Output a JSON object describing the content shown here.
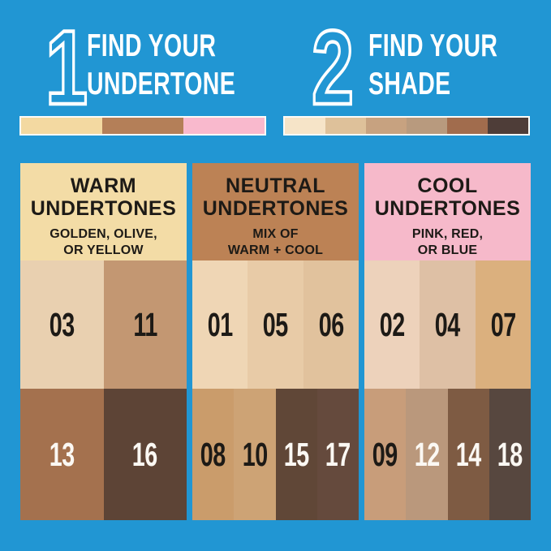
{
  "page": {
    "background": "#2196d3"
  },
  "steps": [
    {
      "number": "1",
      "title_line1": "FIND YOUR",
      "title_line2": "UNDERTONE",
      "swatches": [
        "#f3d9a1",
        "#b47f58",
        "#f9b9cd"
      ]
    },
    {
      "number": "2",
      "title_line1": "FIND YOUR",
      "title_line2": "SHADE",
      "swatches": [
        "#f6e4c8",
        "#dec19a",
        "#c7a280",
        "#b89a7e",
        "#a16c4d",
        "#4e3d38"
      ]
    }
  ],
  "columns": [
    {
      "title_line1": "WARM",
      "title_line2": "UNDERTONES",
      "subtitle_line1": "GOLDEN, OLIVE,",
      "subtitle_line2": "OR YELLOW",
      "header_bg": "#f3dca6",
      "light_row": [
        {
          "label": "03",
          "color": "#e9d0b0",
          "number_color": "#1d1a16"
        },
        {
          "label": "11",
          "color": "#c39772",
          "number_color": "#1d1a16"
        }
      ],
      "dark_row": [
        {
          "label": "13",
          "color": "#a4714e",
          "number_color": "#fbf8f3"
        },
        {
          "label": "16",
          "color": "#5d4436",
          "number_color": "#fbf8f3"
        }
      ]
    },
    {
      "title_line1": "NEUTRAL",
      "title_line2": "UNDERTONES",
      "subtitle_line1": "MIX OF",
      "subtitle_line2": "WARM + COOL",
      "header_bg": "#bc8255",
      "light_row": [
        {
          "label": "01",
          "color": "#efd6b5",
          "number_color": "#1d1a16"
        },
        {
          "label": "05",
          "color": "#e8cba7",
          "number_color": "#1d1a16"
        },
        {
          "label": "06",
          "color": "#e1c29d",
          "number_color": "#1d1a16"
        }
      ],
      "dark_row": [
        {
          "label": "08",
          "color": "#ca9c6b",
          "number_color": "#1d1a16"
        },
        {
          "label": "10",
          "color": "#cda375",
          "number_color": "#1d1a16"
        },
        {
          "label": "15",
          "color": "#604737",
          "number_color": "#fbf8f3"
        },
        {
          "label": "17",
          "color": "#654a3d",
          "number_color": "#fbf8f3"
        }
      ]
    },
    {
      "title_line1": "COOL",
      "title_line2": "UNDERTONES",
      "subtitle_line1": "PINK, RED,",
      "subtitle_line2": "OR BLUE",
      "header_bg": "#f6b9ca",
      "light_row": [
        {
          "label": "02",
          "color": "#edd2bb",
          "number_color": "#1d1a16"
        },
        {
          "label": "04",
          "color": "#dec0a5",
          "number_color": "#1d1a16"
        },
        {
          "label": "07",
          "color": "#dbb07e",
          "number_color": "#1d1a16"
        }
      ],
      "dark_row": [
        {
          "label": "09",
          "color": "#c89d7a",
          "number_color": "#1d1a16"
        },
        {
          "label": "12",
          "color": "#ba987c",
          "number_color": "#fbf8f3"
        },
        {
          "label": "14",
          "color": "#7e5b43",
          "number_color": "#fbf8f3"
        },
        {
          "label": "18",
          "color": "#57473f",
          "number_color": "#fbf8f3"
        }
      ]
    }
  ]
}
